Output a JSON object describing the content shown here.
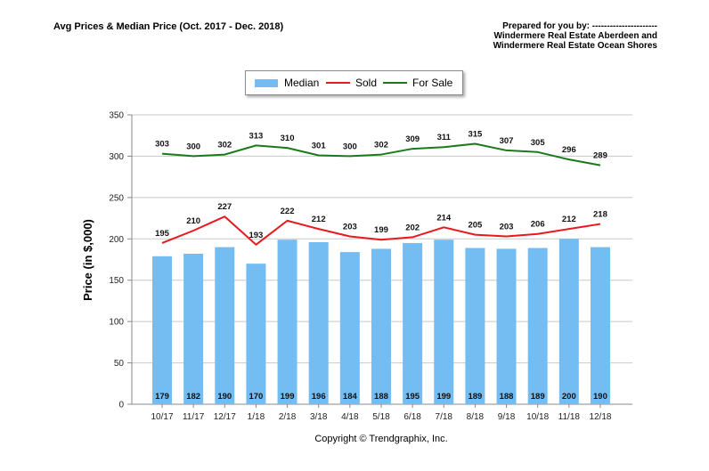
{
  "header": {
    "title": "Avg Prices & Median Price (Oct. 2017 - Dec. 2018)",
    "prepared_lines": [
      "Prepared for you by: ----------------------",
      "Windermere Real Estate Aberdeen and",
      "Windermere Real Estate Ocean Shores"
    ]
  },
  "footer": {
    "copyright": "Copyright © Trendgraphix, Inc."
  },
  "colors": {
    "median": "#73bdf2",
    "sold": "#e8191e",
    "for_sale": "#1a7a1a",
    "grid": "#c8c8c8"
  },
  "chart_data": {
    "type": "bar",
    "ylabel": "Price (in $,000)",
    "ylim": [
      0,
      350
    ],
    "yticks": [
      0,
      50,
      100,
      150,
      200,
      250,
      300,
      350
    ],
    "grid": true,
    "legend_position": "top-center",
    "categories": [
      "10/17",
      "11/17",
      "12/17",
      "1/18",
      "2/18",
      "3/18",
      "4/18",
      "5/18",
      "6/18",
      "7/18",
      "8/18",
      "9/18",
      "10/18",
      "11/18",
      "12/18"
    ],
    "series": [
      {
        "name": "Median",
        "type": "bar",
        "values": [
          179,
          182,
          190,
          170,
          199,
          196,
          184,
          188,
          195,
          199,
          189,
          188,
          189,
          200,
          190
        ]
      },
      {
        "name": "Sold",
        "type": "line",
        "values": [
          195,
          210,
          227,
          193,
          222,
          212,
          203,
          199,
          202,
          214,
          205,
          203,
          206,
          212,
          218
        ]
      },
      {
        "name": "For Sale",
        "type": "line",
        "values": [
          303,
          300,
          302,
          313,
          310,
          301,
          300,
          302,
          309,
          311,
          315,
          307,
          305,
          296,
          289
        ]
      }
    ]
  }
}
